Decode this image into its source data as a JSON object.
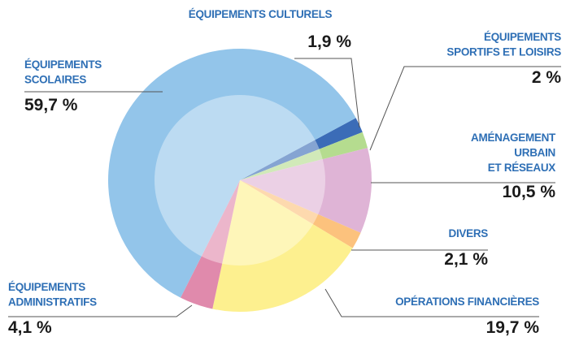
{
  "chart_data": {
    "type": "pie",
    "categories": [
      "ÉQUIPEMENTS CULTURELS",
      "ÉQUIPEMENTS\nSPORTIFS ET LOISIRS",
      "AMÉNAGEMENT\nURBAIN\nET RÉSEAUX",
      "DIVERS",
      "OPÉRATIONS FINANCIÈRES",
      "ÉQUIPEMENTS\nADMINISTRATIFS",
      "ÉQUIPEMENTS\nSCOLAIRES"
    ],
    "values": [
      1.9,
      2,
      10.5,
      2.1,
      19.7,
      4.1,
      59.7
    ],
    "value_labels": [
      "1,9 %",
      "2 %",
      "10,5 %",
      "2,1 %",
      "19,7 %",
      "4,1 %",
      "59,7 %"
    ],
    "colors": [
      "#3b6cb7",
      "#b5dc8f",
      "#dfb4d6",
      "#fcc27d",
      "#fdf08f",
      "#e08aac",
      "#93c5ea"
    ]
  }
}
